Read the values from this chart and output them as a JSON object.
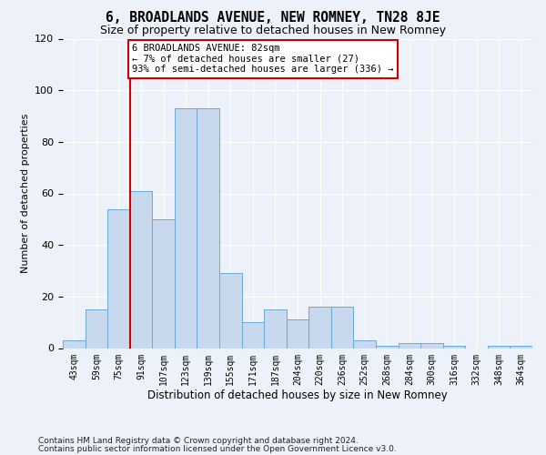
{
  "title": "6, BROADLANDS AVENUE, NEW ROMNEY, TN28 8JE",
  "subtitle": "Size of property relative to detached houses in New Romney",
  "xlabel": "Distribution of detached houses by size in New Romney",
  "ylabel": "Number of detached properties",
  "categories": [
    "43sqm",
    "59sqm",
    "75sqm",
    "91sqm",
    "107sqm",
    "123sqm",
    "139sqm",
    "155sqm",
    "171sqm",
    "187sqm",
    "204sqm",
    "220sqm",
    "236sqm",
    "252sqm",
    "268sqm",
    "284sqm",
    "300sqm",
    "316sqm",
    "332sqm",
    "348sqm",
    "364sqm"
  ],
  "values": [
    3,
    15,
    54,
    61,
    50,
    93,
    93,
    29,
    10,
    15,
    11,
    16,
    16,
    3,
    1,
    2,
    2,
    1,
    0,
    1,
    1
  ],
  "bar_color": "#c8d9ee",
  "bar_edge_color": "#6aaad4",
  "vline_color": "#cc0000",
  "annotation_text": "6 BROADLANDS AVENUE: 82sqm\n← 7% of detached houses are smaller (27)\n93% of semi-detached houses are larger (336) →",
  "annotation_box_color": "#ffffff",
  "annotation_box_edge": "#cc0000",
  "footer_line1": "Contains HM Land Registry data © Crown copyright and database right 2024.",
  "footer_line2": "Contains public sector information licensed under the Open Government Licence v3.0.",
  "background_color": "#edf2fa",
  "grid_color": "#ffffff",
  "ylim": [
    0,
    120
  ],
  "yticks": [
    0,
    20,
    40,
    60,
    80,
    100,
    120
  ]
}
